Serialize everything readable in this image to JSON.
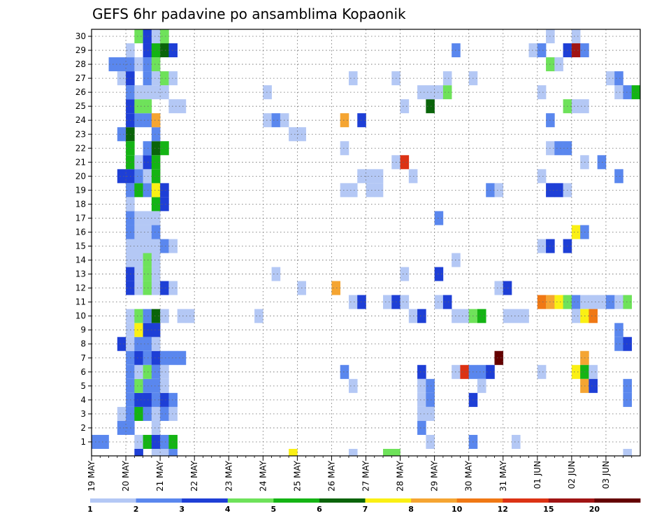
{
  "chart_data": {
    "type": "heatmap",
    "title": "GEFS 6hr padavine po ansamblima Kopaonik",
    "y_categories": [
      "1",
      "2",
      "3",
      "4",
      "5",
      "6",
      "7",
      "8",
      "9",
      "10",
      "11",
      "12",
      "13",
      "14",
      "15",
      "16",
      "17",
      "18",
      "19",
      "20",
      "21",
      "22",
      "23",
      "24",
      "25",
      "26",
      "27",
      "28",
      "29",
      "30"
    ],
    "x_tick_labels": [
      "19 MAY",
      "20 MAY",
      "21 MAY",
      "22 MAY",
      "23 MAY",
      "24 MAY",
      "25 MAY",
      "26 MAY",
      "27 MAY",
      "28 MAY",
      "29 MAY",
      "30 MAY",
      "31 MAY",
      "01 JUN",
      "02 JUN",
      "03 JUN"
    ],
    "time_step_hours": 6,
    "grid": true,
    "legend_position": "bottom",
    "colorbar": {
      "labels": [
        "1",
        "2",
        "3",
        "4",
        "5",
        "6",
        "7",
        "8",
        "10",
        "12",
        "15",
        "20"
      ],
      "colors": [
        "#b4c8f5",
        "#5a87ee",
        "#1e3fd6",
        "#6ee25a",
        "#14b414",
        "#0a640a",
        "#faf014",
        "#f5a532",
        "#f07814",
        "#dc3214",
        "#a01414",
        "#640000"
      ]
    },
    "cells": [
      [
        1,
        0,
        2
      ],
      [
        1,
        1,
        2
      ],
      [
        1,
        5,
        1
      ],
      [
        1,
        6,
        5
      ],
      [
        1,
        7,
        3
      ],
      [
        1,
        8,
        2
      ],
      [
        1,
        9,
        5
      ],
      [
        2,
        3,
        2
      ],
      [
        2,
        4,
        2
      ],
      [
        2,
        7,
        1
      ],
      [
        3,
        3,
        1
      ],
      [
        3,
        4,
        2
      ],
      [
        3,
        5,
        5
      ],
      [
        3,
        6,
        2
      ],
      [
        3,
        7,
        1
      ],
      [
        3,
        8,
        2
      ],
      [
        3,
        9,
        1
      ],
      [
        4,
        4,
        2
      ],
      [
        4,
        5,
        3
      ],
      [
        4,
        6,
        3
      ],
      [
        4,
        7,
        2
      ],
      [
        4,
        8,
        3
      ],
      [
        4,
        9,
        2
      ],
      [
        5,
        4,
        2
      ],
      [
        5,
        5,
        4
      ],
      [
        5,
        6,
        2
      ],
      [
        5,
        7,
        2
      ],
      [
        5,
        8,
        1
      ],
      [
        6,
        4,
        2
      ],
      [
        6,
        5,
        1
      ],
      [
        6,
        6,
        4
      ],
      [
        6,
        7,
        2
      ],
      [
        6,
        8,
        1
      ],
      [
        7,
        4,
        2
      ],
      [
        7,
        5,
        3
      ],
      [
        7,
        6,
        2
      ],
      [
        7,
        7,
        3
      ],
      [
        7,
        8,
        2
      ],
      [
        7,
        9,
        2
      ],
      [
        7,
        10,
        2
      ],
      [
        8,
        3,
        3
      ],
      [
        8,
        4,
        1
      ],
      [
        8,
        5,
        2
      ],
      [
        8,
        6,
        2
      ],
      [
        8,
        7,
        1
      ],
      [
        9,
        4,
        1
      ],
      [
        9,
        5,
        7
      ],
      [
        9,
        6,
        3
      ],
      [
        9,
        7,
        3
      ],
      [
        10,
        4,
        1
      ],
      [
        10,
        5,
        4
      ],
      [
        10,
        6,
        2
      ],
      [
        10,
        7,
        6
      ],
      [
        10,
        8,
        1
      ],
      [
        10,
        10,
        1
      ],
      [
        10,
        11,
        1
      ],
      [
        12,
        4,
        3
      ],
      [
        12,
        5,
        1
      ],
      [
        12,
        6,
        4
      ],
      [
        12,
        7,
        1
      ],
      [
        12,
        8,
        3
      ],
      [
        12,
        9,
        1
      ],
      [
        13,
        4,
        3
      ],
      [
        13,
        5,
        1
      ],
      [
        13,
        6,
        4
      ],
      [
        13,
        7,
        1
      ],
      [
        14,
        4,
        1
      ],
      [
        14,
        5,
        1
      ],
      [
        14,
        6,
        4
      ],
      [
        14,
        7,
        1
      ],
      [
        15,
        4,
        1
      ],
      [
        15,
        5,
        1
      ],
      [
        15,
        6,
        1
      ],
      [
        15,
        7,
        1
      ],
      [
        15,
        8,
        2
      ],
      [
        15,
        9,
        1
      ],
      [
        16,
        4,
        2
      ],
      [
        16,
        5,
        1
      ],
      [
        16,
        6,
        1
      ],
      [
        16,
        7,
        2
      ],
      [
        17,
        4,
        2
      ],
      [
        17,
        5,
        1
      ],
      [
        17,
        6,
        1
      ],
      [
        17,
        7,
        1
      ],
      [
        18,
        4,
        1
      ],
      [
        18,
        7,
        5
      ],
      [
        18,
        8,
        3
      ],
      [
        19,
        4,
        2
      ],
      [
        19,
        5,
        5
      ],
      [
        19,
        6,
        2
      ],
      [
        19,
        7,
        7
      ],
      [
        19,
        8,
        3
      ],
      [
        20,
        3,
        3
      ],
      [
        20,
        4,
        3
      ],
      [
        20,
        5,
        2
      ],
      [
        20,
        6,
        1
      ],
      [
        20,
        7,
        5
      ],
      [
        21,
        4,
        5
      ],
      [
        21,
        5,
        1
      ],
      [
        21,
        6,
        3
      ],
      [
        21,
        7,
        5
      ],
      [
        22,
        4,
        5
      ],
      [
        22,
        6,
        2
      ],
      [
        22,
        7,
        6
      ],
      [
        22,
        8,
        5
      ],
      [
        23,
        3,
        2
      ],
      [
        23,
        4,
        6
      ],
      [
        23,
        7,
        2
      ],
      [
        24,
        4,
        3
      ],
      [
        24,
        5,
        2
      ],
      [
        24,
        6,
        2
      ],
      [
        24,
        7,
        8
      ],
      [
        25,
        4,
        3
      ],
      [
        25,
        5,
        4
      ],
      [
        25,
        6,
        4
      ],
      [
        25,
        9,
        1
      ],
      [
        25,
        10,
        1
      ],
      [
        26,
        4,
        2
      ],
      [
        26,
        5,
        1
      ],
      [
        26,
        6,
        1
      ],
      [
        26,
        7,
        1
      ],
      [
        26,
        8,
        1
      ],
      [
        27,
        3,
        1
      ],
      [
        27,
        4,
        3
      ],
      [
        27,
        6,
        2
      ],
      [
        27,
        7,
        1
      ],
      [
        27,
        8,
        4
      ],
      [
        27,
        9,
        1
      ],
      [
        28,
        2,
        2
      ],
      [
        28,
        3,
        2
      ],
      [
        28,
        4,
        2
      ],
      [
        28,
        5,
        1
      ],
      [
        28,
        6,
        2
      ],
      [
        28,
        7,
        4
      ],
      [
        29,
        4,
        1
      ],
      [
        29,
        6,
        3
      ],
      [
        29,
        7,
        5
      ],
      [
        29,
        8,
        6
      ],
      [
        29,
        9,
        3
      ],
      [
        30,
        5,
        4
      ],
      [
        30,
        6,
        3
      ],
      [
        30,
        7,
        1
      ],
      [
        30,
        8,
        4
      ],
      [
        0,
        5,
        3
      ],
      [
        0,
        7,
        1
      ],
      [
        0,
        8,
        1
      ],
      [
        0,
        9,
        2
      ],
      [
        24,
        20,
        1
      ],
      [
        24,
        21,
        2
      ],
      [
        24,
        22,
        1
      ],
      [
        26,
        20,
        1
      ],
      [
        13,
        21,
        1
      ],
      [
        10,
        19,
        1
      ],
      [
        12,
        24,
        1
      ],
      [
        24,
        29,
        8
      ],
      [
        12,
        28,
        8
      ],
      [
        11,
        30,
        1
      ],
      [
        11,
        31,
        3
      ],
      [
        11,
        34,
        1
      ],
      [
        11,
        35,
        3
      ],
      [
        11,
        36,
        1
      ],
      [
        10,
        37,
        1
      ],
      [
        10,
        38,
        3
      ],
      [
        10,
        42,
        1
      ],
      [
        10,
        43,
        1
      ],
      [
        10,
        44,
        4
      ],
      [
        10,
        45,
        5
      ],
      [
        10,
        48,
        1
      ],
      [
        10,
        49,
        1
      ],
      [
        10,
        50,
        1
      ],
      [
        11,
        40,
        1
      ],
      [
        11,
        41,
        3
      ],
      [
        11,
        52,
        9
      ],
      [
        11,
        53,
        8
      ],
      [
        11,
        54,
        7
      ],
      [
        11,
        55,
        4
      ],
      [
        11,
        56,
        2
      ],
      [
        11,
        57,
        1
      ],
      [
        11,
        58,
        1
      ],
      [
        11,
        59,
        1
      ],
      [
        11,
        60,
        2
      ],
      [
        11,
        61,
        1
      ],
      [
        11,
        62,
        4
      ],
      [
        10,
        56,
        1
      ],
      [
        10,
        57,
        7
      ],
      [
        10,
        58,
        9
      ],
      [
        12,
        47,
        1
      ],
      [
        12,
        48,
        3
      ],
      [
        13,
        36,
        1
      ],
      [
        13,
        40,
        3
      ],
      [
        14,
        42,
        1
      ],
      [
        15,
        52,
        1
      ],
      [
        15,
        53,
        3
      ],
      [
        15,
        55,
        3
      ],
      [
        16,
        56,
        7
      ],
      [
        16,
        57,
        2
      ],
      [
        17,
        40,
        2
      ],
      [
        19,
        29,
        1
      ],
      [
        19,
        30,
        1
      ],
      [
        19,
        32,
        1
      ],
      [
        19,
        33,
        1
      ],
      [
        19,
        46,
        2
      ],
      [
        19,
        47,
        1
      ],
      [
        19,
        53,
        3
      ],
      [
        19,
        54,
        3
      ],
      [
        19,
        55,
        1
      ],
      [
        20,
        31,
        1
      ],
      [
        20,
        32,
        1
      ],
      [
        20,
        33,
        1
      ],
      [
        20,
        37,
        1
      ],
      [
        20,
        52,
        1
      ],
      [
        20,
        61,
        2
      ],
      [
        21,
        35,
        1
      ],
      [
        21,
        36,
        10
      ],
      [
        21,
        57,
        1
      ],
      [
        21,
        59,
        2
      ],
      [
        22,
        29,
        1
      ],
      [
        22,
        53,
        1
      ],
      [
        22,
        54,
        2
      ],
      [
        22,
        55,
        2
      ],
      [
        23,
        23,
        1
      ],
      [
        23,
        24,
        1
      ],
      [
        24,
        31,
        3
      ],
      [
        24,
        53,
        2
      ],
      [
        25,
        36,
        1
      ],
      [
        25,
        39,
        6
      ],
      [
        25,
        55,
        4
      ],
      [
        25,
        56,
        1
      ],
      [
        25,
        57,
        1
      ],
      [
        26,
        38,
        1
      ],
      [
        26,
        39,
        1
      ],
      [
        26,
        40,
        1
      ],
      [
        26,
        41,
        4
      ],
      [
        26,
        52,
        1
      ],
      [
        26,
        61,
        1
      ],
      [
        26,
        62,
        2
      ],
      [
        26,
        63,
        5
      ],
      [
        27,
        30,
        1
      ],
      [
        27,
        35,
        1
      ],
      [
        27,
        41,
        1
      ],
      [
        27,
        44,
        1
      ],
      [
        27,
        60,
        1
      ],
      [
        27,
        61,
        2
      ],
      [
        28,
        53,
        4
      ],
      [
        28,
        54,
        1
      ],
      [
        29,
        42,
        2
      ],
      [
        29,
        51,
        1
      ],
      [
        29,
        52,
        2
      ],
      [
        29,
        55,
        3
      ],
      [
        29,
        56,
        11
      ],
      [
        29,
        57,
        2
      ],
      [
        30,
        53,
        1
      ],
      [
        30,
        56,
        1
      ],
      [
        9,
        61,
        2
      ],
      [
        8,
        61,
        2
      ],
      [
        8,
        62,
        3
      ],
      [
        7,
        47,
        12
      ],
      [
        7,
        57,
        8
      ],
      [
        6,
        29,
        2
      ],
      [
        6,
        38,
        3
      ],
      [
        6,
        42,
        1
      ],
      [
        6,
        43,
        10
      ],
      [
        6,
        44,
        2
      ],
      [
        6,
        45,
        2
      ],
      [
        6,
        46,
        3
      ],
      [
        6,
        52,
        1
      ],
      [
        6,
        56,
        7
      ],
      [
        6,
        57,
        5
      ],
      [
        6,
        58,
        1
      ],
      [
        5,
        30,
        1
      ],
      [
        5,
        38,
        1
      ],
      [
        5,
        39,
        2
      ],
      [
        5,
        45,
        1
      ],
      [
        5,
        57,
        8
      ],
      [
        5,
        58,
        3
      ],
      [
        5,
        62,
        2
      ],
      [
        4,
        38,
        1
      ],
      [
        4,
        39,
        2
      ],
      [
        4,
        44,
        3
      ],
      [
        4,
        62,
        2
      ],
      [
        3,
        38,
        1
      ],
      [
        3,
        39,
        1
      ],
      [
        2,
        38,
        2
      ],
      [
        1,
        39,
        1
      ],
      [
        1,
        44,
        2
      ],
      [
        1,
        49,
        1
      ],
      [
        0,
        23,
        7
      ],
      [
        0,
        30,
        1
      ],
      [
        0,
        34,
        4
      ],
      [
        0,
        35,
        4
      ],
      [
        0,
        62,
        1
      ]
    ]
  }
}
